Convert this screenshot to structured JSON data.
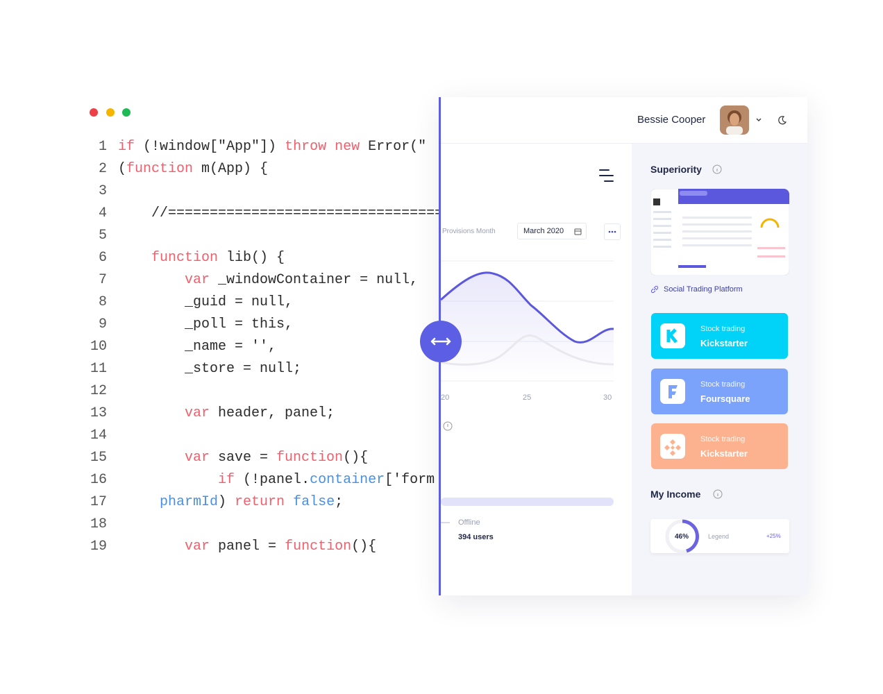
{
  "code": {
    "lines": [
      {
        "number": 1,
        "segments": [
          {
            "text": "if",
            "color": "#f25f6c"
          },
          {
            "text": " (!window[\"App\"]) ",
            "color": "#2b2b2b"
          },
          {
            "text": "throw new",
            "color": "#f25f6c"
          },
          {
            "text": " Error(\"",
            "color": "#2b2b2b"
          }
        ]
      },
      {
        "number": 2,
        "segments": [
          {
            "text": "(",
            "color": "#2b2b2b"
          },
          {
            "text": "function",
            "color": "#f25f6c"
          },
          {
            "text": " m(App) {",
            "color": "#2b2b2b"
          }
        ]
      },
      {
        "number": 3,
        "segments": []
      },
      {
        "number": 4,
        "segments": [
          {
            "text": "    //==================================",
            "color": "#2b2b2b"
          }
        ]
      },
      {
        "number": 5,
        "segments": []
      },
      {
        "number": 6,
        "segments": [
          {
            "text": "    ",
            "color": "#2b2b2b"
          },
          {
            "text": "function",
            "color": "#f25f6c"
          },
          {
            "text": " lib() {",
            "color": "#2b2b2b"
          }
        ]
      },
      {
        "number": 7,
        "segments": [
          {
            "text": "        ",
            "color": "#2b2b2b"
          },
          {
            "text": "var",
            "color": "#f25f6c"
          },
          {
            "text": " _windowContainer = null,",
            "color": "#2b2b2b"
          }
        ]
      },
      {
        "number": 8,
        "segments": [
          {
            "text": "        _guid = null,",
            "color": "#2b2b2b"
          }
        ]
      },
      {
        "number": 9,
        "segments": [
          {
            "text": "        _poll = this,",
            "color": "#2b2b2b"
          }
        ]
      },
      {
        "number": 10,
        "segments": [
          {
            "text": "        _name = '',",
            "color": "#2b2b2b"
          }
        ]
      },
      {
        "number": 11,
        "segments": [
          {
            "text": "        _store = null;",
            "color": "#2b2b2b"
          }
        ]
      },
      {
        "number": 12,
        "segments": []
      },
      {
        "number": 13,
        "segments": [
          {
            "text": "        ",
            "color": "#2b2b2b"
          },
          {
            "text": "var",
            "color": "#f25f6c"
          },
          {
            "text": " header, panel;",
            "color": "#2b2b2b"
          }
        ]
      },
      {
        "number": 14,
        "segments": []
      },
      {
        "number": 15,
        "segments": [
          {
            "text": "        ",
            "color": "#2b2b2b"
          },
          {
            "text": "var",
            "color": "#f25f6c"
          },
          {
            "text": " save = ",
            "color": "#2b2b2b"
          },
          {
            "text": "function",
            "color": "#f25f6c"
          },
          {
            "text": "(){",
            "color": "#2b2b2b"
          }
        ]
      },
      {
        "number": 16,
        "segments": [
          {
            "text": "            ",
            "color": "#2b2b2b"
          },
          {
            "text": "if",
            "color": "#f25f6c"
          },
          {
            "text": " (!panel.",
            "color": "#2b2b2b"
          },
          {
            "text": "container",
            "color": "#4a90e2"
          },
          {
            "text": "['form",
            "color": "#2b2b2b"
          }
        ]
      },
      {
        "number": 17,
        "segments": [
          {
            "text": "     ",
            "color": "#2b2b2b"
          },
          {
            "text": "pharmId",
            "color": "#4a90e2"
          },
          {
            "text": ") ",
            "color": "#2b2b2b"
          },
          {
            "text": "return",
            "color": "#f25f6c"
          },
          {
            "text": " ",
            "color": "#2b2b2b"
          },
          {
            "text": "false",
            "color": "#4a90e2"
          },
          {
            "text": ";",
            "color": "#2b2b2b"
          }
        ]
      },
      {
        "number": 18,
        "segments": []
      },
      {
        "number": 19,
        "segments": [
          {
            "text": "        ",
            "color": "#2b2b2b"
          },
          {
            "text": "var",
            "color": "#f25f6c"
          },
          {
            "text": " panel = ",
            "color": "#2b2b2b"
          },
          {
            "text": "function",
            "color": "#f25f6c"
          },
          {
            "text": "(){",
            "color": "#2b2b2b"
          }
        ]
      }
    ]
  },
  "header": {
    "user_name": "Bessie Cooper"
  },
  "chart_panel": {
    "label": "Provisions Month",
    "period": "March 2020",
    "x_labels": [
      "20",
      "25",
      "30"
    ]
  },
  "status": {
    "label": "Offline",
    "count": "394 users"
  },
  "sidebar": {
    "superiority": {
      "title": "Superiority",
      "link": "Social Trading Platform"
    },
    "cards": [
      {
        "subtitle": "Stock trading",
        "title": "Kickstarter",
        "color": "#00d3f7"
      },
      {
        "subtitle": "Stock trading",
        "title": "Foursquare",
        "color": "#7ca3fb"
      },
      {
        "subtitle": "Stock trading",
        "title": "Kickstarter",
        "color": "#fdb28f"
      }
    ],
    "income": {
      "title": "My Income",
      "percent": "46%",
      "legend": "Legend",
      "change": "+25%"
    }
  }
}
